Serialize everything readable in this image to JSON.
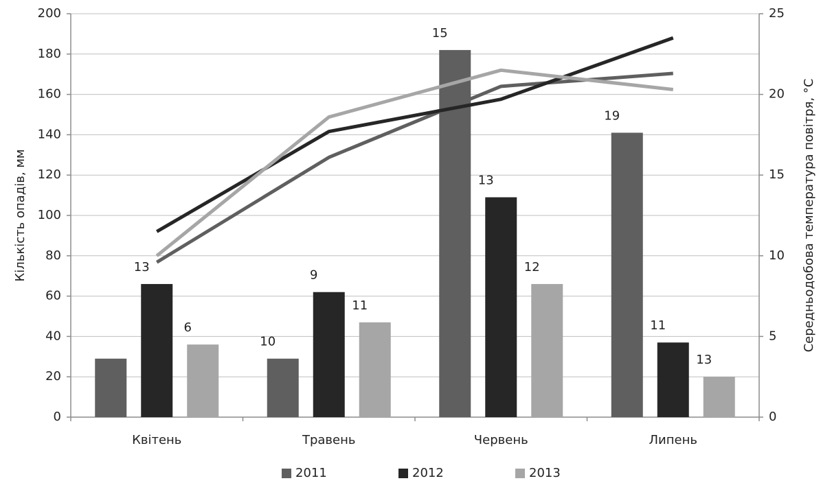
{
  "chart_data": {
    "type": "bar_line",
    "y_label": "Кількість опадів, мм",
    "y2_label": "Середньодобова температура повітря, °C",
    "categories": [
      "Квітень",
      "Травень",
      "Червень",
      "Липень"
    ],
    "series": [
      {
        "name": "2011",
        "color": "#5f5f5f",
        "values": [
          29,
          29,
          182,
          141
        ],
        "data_labels": [
          null,
          10,
          15,
          19
        ]
      },
      {
        "name": "2012",
        "color": "#262626",
        "values": [
          66,
          62,
          109,
          37
        ],
        "data_labels": [
          13,
          9,
          13,
          11
        ]
      },
      {
        "name": "2013",
        "color": "#a6a6a6",
        "values": [
          36,
          47,
          66,
          20
        ],
        "data_labels": [
          6,
          11,
          12,
          13
        ]
      }
    ],
    "line_series": [
      {
        "color": "#5f5f5f",
        "axis": "y2",
        "values": [
          9.6,
          16.1,
          20.5,
          21.3
        ]
      },
      {
        "color": "#262626",
        "axis": "y2",
        "values": [
          11.5,
          17.7,
          19.7,
          23.5
        ]
      },
      {
        "color": "#a6a6a6",
        "axis": "y2",
        "values": [
          10,
          18.6,
          21.5,
          20.3
        ]
      }
    ],
    "ylim": [
      0,
      200
    ],
    "yticks": [
      0,
      20,
      40,
      60,
      80,
      100,
      120,
      140,
      160,
      180,
      200
    ],
    "y2lim": [
      0,
      25
    ],
    "y2ticks": [
      0,
      5,
      10,
      15,
      20,
      25
    ],
    "grid": true,
    "legend": "bottom"
  }
}
